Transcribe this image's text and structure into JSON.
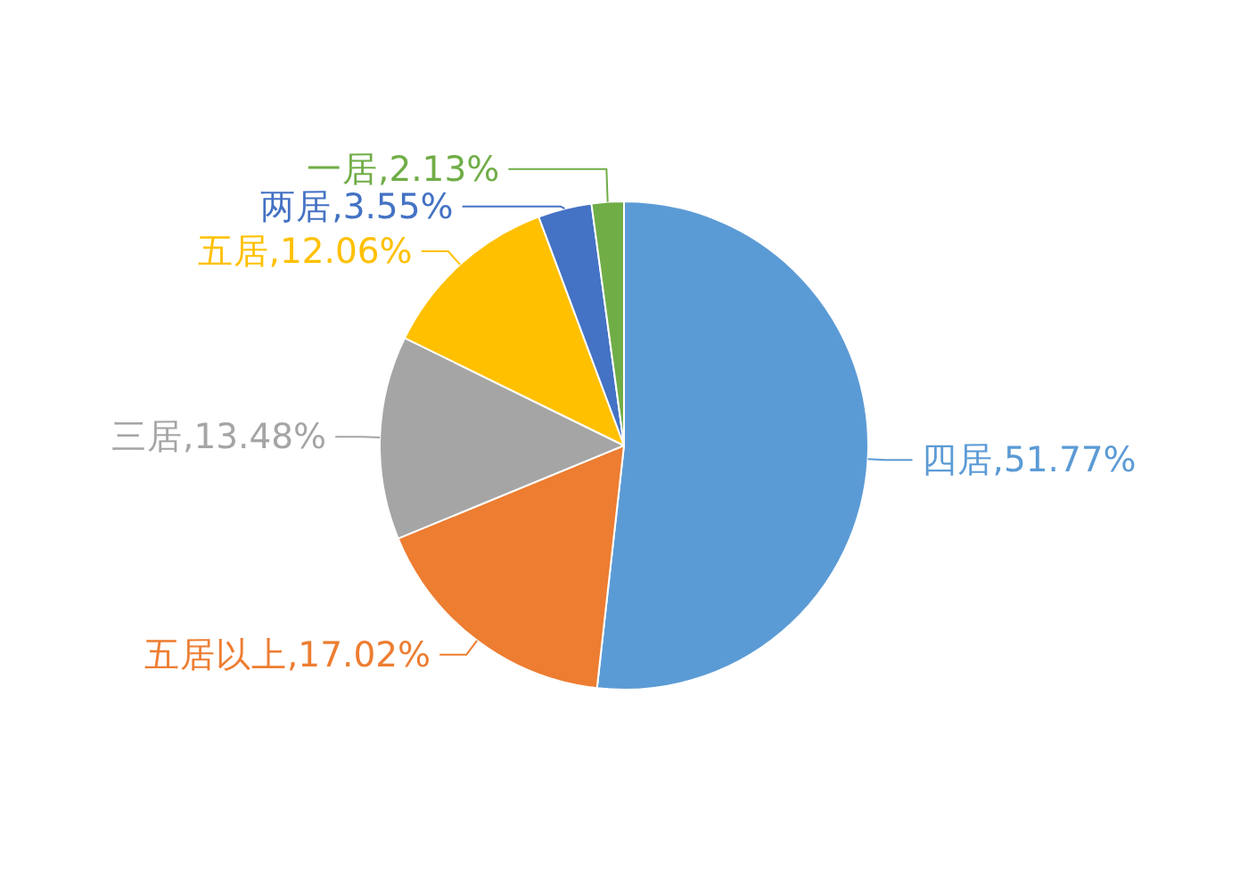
{
  "chart_data": {
    "type": "pie",
    "categories": [
      "四居",
      "五居以上",
      "三居",
      "五居",
      "两居",
      "一居"
    ],
    "values": [
      51.77,
      17.02,
      13.48,
      12.06,
      3.55,
      2.13
    ],
    "colors": [
      "#5b9bd5",
      "#ed7d31",
      "#a5a5a5",
      "#ffc000",
      "#4472c4",
      "#70ad47"
    ],
    "value_labels": [
      "51.77%",
      "17.02%",
      "13.48%",
      "12.06%",
      "3.55%",
      "2.13%"
    ]
  }
}
